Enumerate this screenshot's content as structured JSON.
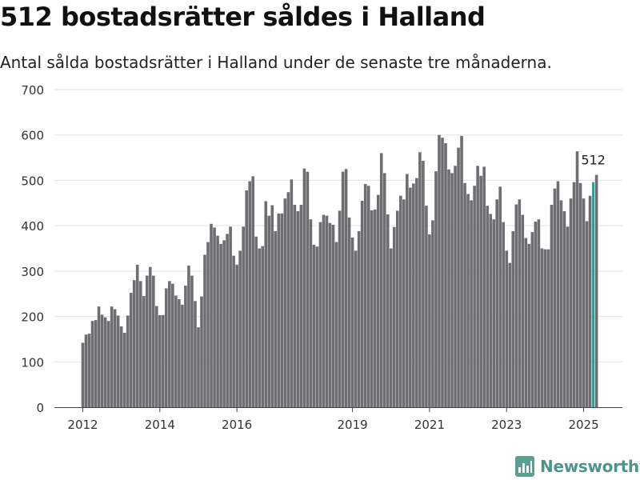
{
  "header": {
    "title": "512 bostadsrätter såldes i Halland",
    "subtitle": "Antal sålda bostadsrätter i Halland under de senaste tre månaderna."
  },
  "brand": {
    "name": "Newsworthy",
    "logo_icon": "bar-chart-icon",
    "color": "#5a9e94"
  },
  "chart_data": {
    "type": "bar",
    "x_start": "2012-01",
    "x_end": "2025-04",
    "xticks": [
      {
        "label": "2012",
        "at": "2012-01"
      },
      {
        "label": "2014",
        "at": "2014-01"
      },
      {
        "label": "2016",
        "at": "2016-01"
      },
      {
        "label": "2019",
        "at": "2019-01"
      },
      {
        "label": "2021",
        "at": "2021-01"
      },
      {
        "label": "2023",
        "at": "2023-01"
      },
      {
        "label": "2025",
        "at": "2025-01"
      }
    ],
    "yticks": [
      0,
      100,
      200,
      300,
      400,
      500,
      600,
      700
    ],
    "ylim": [
      0,
      700
    ],
    "grid": true,
    "colors": {
      "bars": "#6e6d72",
      "highlight": "#2a9d8f"
    },
    "highlight": {
      "x": "2025-04",
      "value": 512,
      "label": "512"
    },
    "values": [
      142,
      160,
      162,
      190,
      192,
      222,
      204,
      198,
      190,
      222,
      216,
      202,
      178,
      164,
      202,
      252,
      280,
      314,
      278,
      245,
      290,
      309,
      290,
      223,
      203,
      203,
      262,
      278,
      272,
      246,
      238,
      226,
      268,
      312,
      290,
      234,
      176,
      244,
      336,
      364,
      404,
      396,
      378,
      360,
      368,
      382,
      398,
      334,
      314,
      345,
      398,
      478,
      498,
      509,
      376,
      350,
      355,
      454,
      422,
      445,
      388,
      427,
      427,
      460,
      474,
      502,
      446,
      432,
      446,
      526,
      519,
      414,
      358,
      354,
      408,
      424,
      422,
      406,
      402,
      364,
      433,
      519,
      525,
      418,
      374,
      345,
      388,
      455,
      492,
      488,
      434,
      436,
      468,
      560,
      516,
      425,
      350,
      397,
      433,
      466,
      458,
      514,
      484,
      493,
      505,
      562,
      543,
      444,
      381,
      412,
      520,
      600,
      594,
      582,
      524,
      516,
      532,
      572,
      598,
      494,
      470,
      456,
      488,
      532,
      510,
      530,
      444,
      426,
      414,
      458,
      486,
      408,
      345,
      318,
      388,
      447,
      458,
      424,
      373,
      360,
      386,
      409,
      414,
      350,
      348,
      348,
      446,
      482,
      498,
      456,
      432,
      398,
      460,
      496,
      564,
      494,
      460,
      410,
      466,
      496,
      512
    ]
  }
}
